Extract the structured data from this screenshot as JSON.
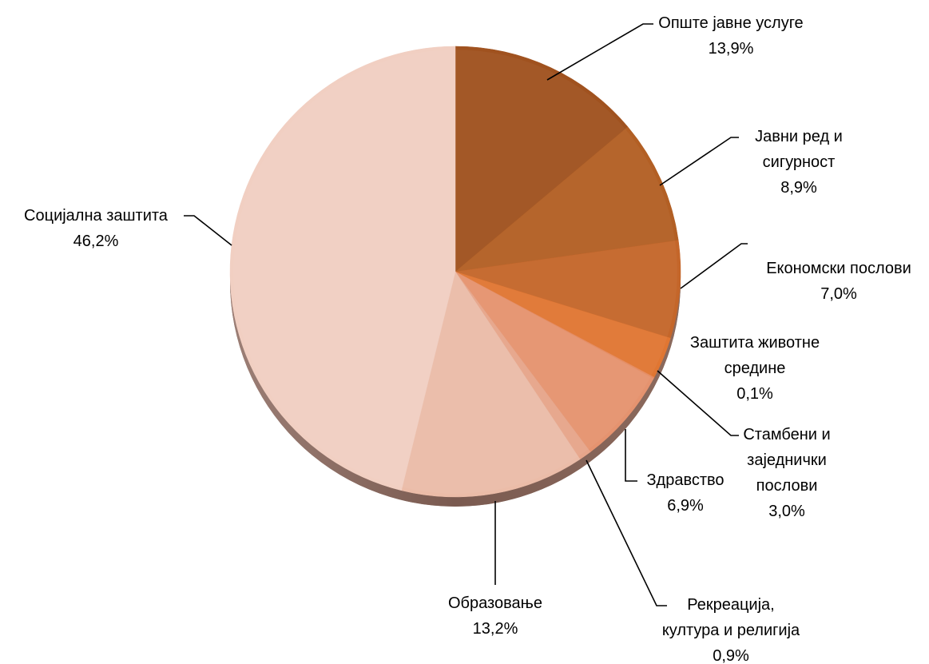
{
  "chart_data": {
    "type": "pie",
    "title": "",
    "unit": "%",
    "slices": [
      {
        "label_lines": [
          "Опште јавне услуге"
        ],
        "value_label": "13,9%",
        "value": 13.9,
        "color": "#a0521f"
      },
      {
        "label_lines": [
          "Јавни ред и",
          "сигурност"
        ],
        "value_label": "8,9%",
        "value": 8.9,
        "color": "#b25f24"
      },
      {
        "label_lines": [
          "Економски послови"
        ],
        "value_label": "7,0%",
        "value": 7.0,
        "color": "#c4662a"
      },
      {
        "label_lines": [
          "Стамбени и",
          "заједнички",
          "послови"
        ],
        "value_label": "3,0%",
        "value": 3.0,
        "color": "#e07632"
      },
      {
        "label_lines": [
          "Заштита животне",
          "средине"
        ],
        "value_label": "0,1%",
        "value": 0.1,
        "color": "#e58a5e"
      },
      {
        "label_lines": [
          "Здравство"
        ],
        "value_label": "6,9%",
        "value": 6.9,
        "color": "#e5936f"
      },
      {
        "label_lines": [
          "Рекреација,",
          "култура и религија"
        ],
        "value_label": "0,9%",
        "value": 0.9,
        "color": "#e6a58a"
      },
      {
        "label_lines": [
          "Образовање"
        ],
        "value_label": "13,2%",
        "value": 13.2,
        "color": "#ebbca8"
      },
      {
        "label_lines": [
          "Социјална заштита"
        ],
        "value_label": "46,2%",
        "value": 46.2,
        "color": "#f1cfc2"
      }
    ],
    "start_angle_deg": 0,
    "direction": "clockwise",
    "legend": "none",
    "labels": "outside-with-leader-lines"
  }
}
